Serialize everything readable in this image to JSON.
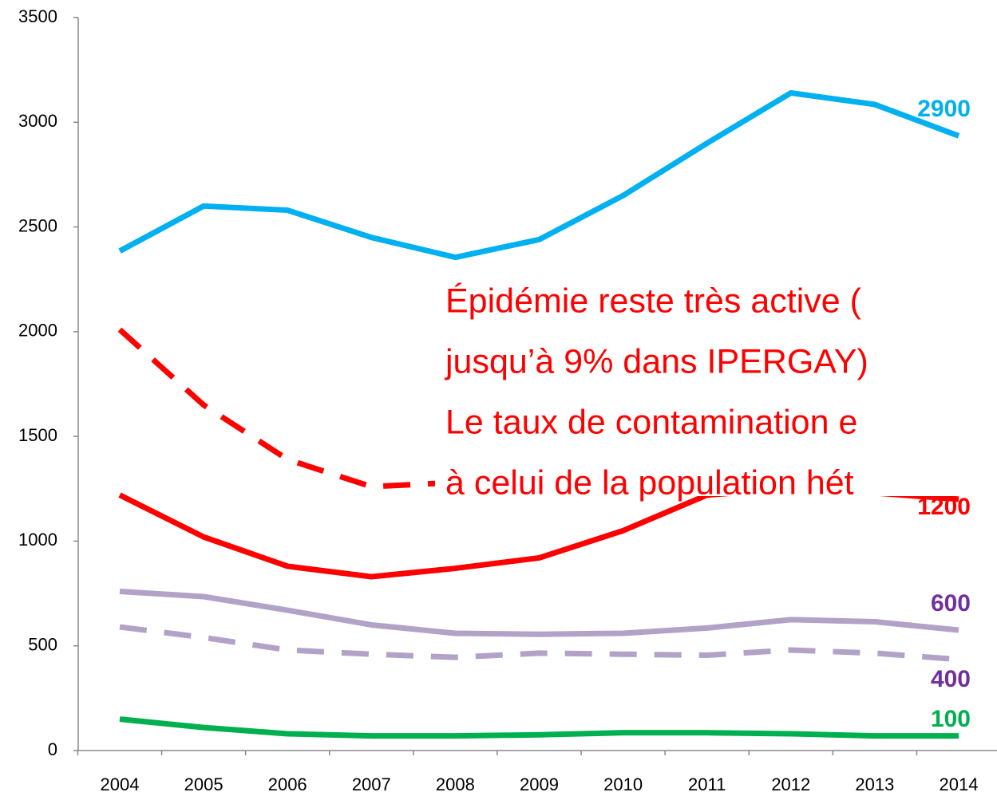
{
  "chart_data": {
    "type": "line",
    "categories": [
      "2004",
      "2005",
      "2006",
      "2007",
      "2008",
      "2009",
      "2010",
      "2011",
      "2012",
      "2013",
      "2014"
    ],
    "ylim": [
      0,
      3500
    ],
    "yticks": [
      0,
      500,
      1000,
      1500,
      2000,
      2500,
      3000,
      3500
    ],
    "series": [
      {
        "color": "#00b0f0",
        "label_color": "#00b0f0",
        "dashed": false,
        "label": "2900",
        "values": [
          2385,
          2600,
          2580,
          2450,
          2355,
          2440,
          2650,
          2900,
          3140,
          3085,
          2935
        ]
      },
      {
        "color": "#ff0000",
        "label_color": "#ff0000",
        "dashed": true,
        "values": [
          2010,
          1650,
          1390,
          1260,
          1280,
          null,
          null,
          null,
          null,
          null,
          null
        ]
      },
      {
        "color": "#ff0000",
        "label_color": "#ff0000",
        "dashed": false,
        "label": "1200",
        "values": [
          1220,
          1020,
          880,
          830,
          870,
          920,
          1050,
          1220,
          1250,
          1230,
          1200
        ]
      },
      {
        "color": "#b3a2c7",
        "label_color": "#7030a0",
        "dashed": false,
        "label": "600",
        "values": [
          760,
          735,
          670,
          600,
          560,
          555,
          560,
          585,
          625,
          615,
          575
        ]
      },
      {
        "color": "#b3a2c7",
        "label_color": "#7030a0",
        "dashed": true,
        "label": "400",
        "values": [
          590,
          540,
          480,
          460,
          445,
          465,
          460,
          455,
          480,
          465,
          435
        ]
      },
      {
        "color": "#00b050",
        "label_color": "#00b050",
        "dashed": false,
        "label": "100",
        "values": [
          150,
          110,
          80,
          70,
          70,
          75,
          85,
          85,
          80,
          70,
          70
        ]
      }
    ],
    "annotation": [
      "Épidémie reste très active (",
      "jusqu’à 9% dans IPERGAY)",
      "Le taux de contamination e",
      "à celui de la population hét"
    ]
  }
}
